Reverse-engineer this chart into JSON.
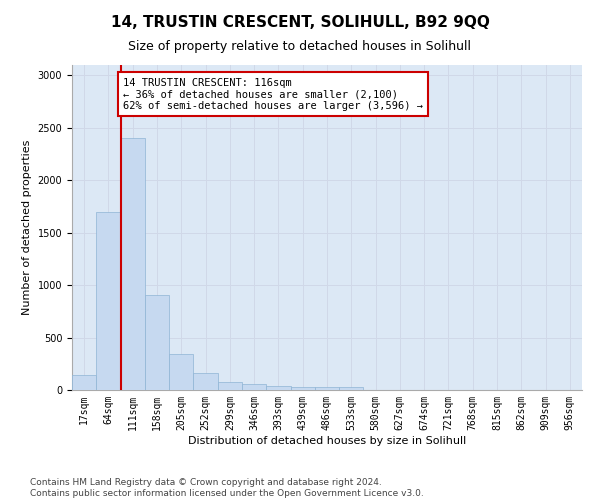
{
  "title": "14, TRUSTIN CRESCENT, SOLIHULL, B92 9QQ",
  "subtitle": "Size of property relative to detached houses in Solihull",
  "xlabel": "Distribution of detached houses by size in Solihull",
  "ylabel": "Number of detached properties",
  "bar_values": [
    140,
    1700,
    2400,
    910,
    345,
    160,
    75,
    55,
    35,
    25,
    25,
    25,
    0,
    0,
    0,
    0,
    0,
    0,
    0,
    0,
    0
  ],
  "bar_labels": [
    "17sqm",
    "64sqm",
    "111sqm",
    "158sqm",
    "205sqm",
    "252sqm",
    "299sqm",
    "346sqm",
    "393sqm",
    "439sqm",
    "486sqm",
    "533sqm",
    "580sqm",
    "627sqm",
    "674sqm",
    "721sqm",
    "768sqm",
    "815sqm",
    "862sqm",
    "909sqm",
    "956sqm"
  ],
  "bar_color": "#c6d9f0",
  "bar_edge_color": "#8eb4d4",
  "property_bin_index": 2,
  "annotation_text": "14 TRUSTIN CRESCENT: 116sqm\n← 36% of detached houses are smaller (2,100)\n62% of semi-detached houses are larger (3,596) →",
  "annotation_box_color": "#ffffff",
  "annotation_box_edge_color": "#cc0000",
  "vline_color": "#cc0000",
  "ylim": [
    0,
    3100
  ],
  "yticks": [
    0,
    500,
    1000,
    1500,
    2000,
    2500,
    3000
  ],
  "grid_color": "#d0d8e8",
  "bg_color": "#ffffff",
  "plot_bg_color": "#dce8f5",
  "footer_line1": "Contains HM Land Registry data © Crown copyright and database right 2024.",
  "footer_line2": "Contains public sector information licensed under the Open Government Licence v3.0.",
  "title_fontsize": 11,
  "subtitle_fontsize": 9,
  "axis_label_fontsize": 8,
  "tick_fontsize": 7,
  "annotation_fontsize": 7.5,
  "footer_fontsize": 6.5
}
